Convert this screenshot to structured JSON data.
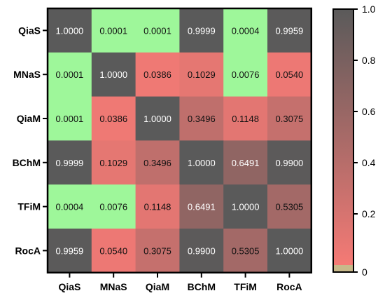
{
  "chart_data": {
    "type": "heatmap",
    "row_labels": [
      "QiaS",
      "MNaS",
      "QiaM",
      "BChM",
      "TFiM",
      "RocA"
    ],
    "col_labels": [
      "QiaS",
      "MNaS",
      "QiaM",
      "BChM",
      "TFiM",
      "RocA"
    ],
    "values": [
      [
        1.0,
        0.0001,
        0.0001,
        0.9999,
        0.0004,
        0.9959
      ],
      [
        0.0001,
        1.0,
        0.0386,
        0.1029,
        0.0076,
        0.054
      ],
      [
        0.0001,
        0.0386,
        1.0,
        0.3496,
        0.1148,
        0.3075
      ],
      [
        0.9999,
        0.1029,
        0.3496,
        1.0,
        0.6491,
        0.99
      ],
      [
        0.0004,
        0.0076,
        0.1148,
        0.6491,
        1.0,
        0.5305
      ],
      [
        0.9959,
        0.054,
        0.3075,
        0.99,
        0.5305,
        1.0
      ]
    ],
    "cell_labels": [
      [
        "1.0000",
        "0.0001",
        "0.0001",
        "0.9999",
        "0.0004",
        "0.9959"
      ],
      [
        "0.0001",
        "1.0000",
        "0.0386",
        "0.1029",
        "0.0076",
        "0.0540"
      ],
      [
        "0.0001",
        "0.0386",
        "1.0000",
        "0.3496",
        "0.1148",
        "0.3075"
      ],
      [
        "0.9999",
        "0.1029",
        "0.3496",
        "1.0000",
        "0.6491",
        "0.9900"
      ],
      [
        "0.0004",
        "0.0076",
        "0.1148",
        "0.6491",
        "1.0000",
        "0.5305"
      ],
      [
        "0.9959",
        "0.0540",
        "0.3075",
        "0.9900",
        "0.5305",
        "1.0000"
      ]
    ],
    "colorbar": {
      "range": [
        0,
        1
      ],
      "ticks": [
        0,
        0.2,
        0.4,
        0.6,
        0.8,
        1.0
      ],
      "tick_labels": [
        "0",
        "0.2",
        "0.4",
        "0.6",
        "0.8",
        "1.0"
      ],
      "low_color": "#f57a75",
      "high_color": "#5a5a5a",
      "below_threshold_color": "#9ef79a",
      "threshold": 0.01,
      "floor_color": "#c8b98a"
    },
    "title": "",
    "xlabel": "",
    "ylabel": ""
  }
}
